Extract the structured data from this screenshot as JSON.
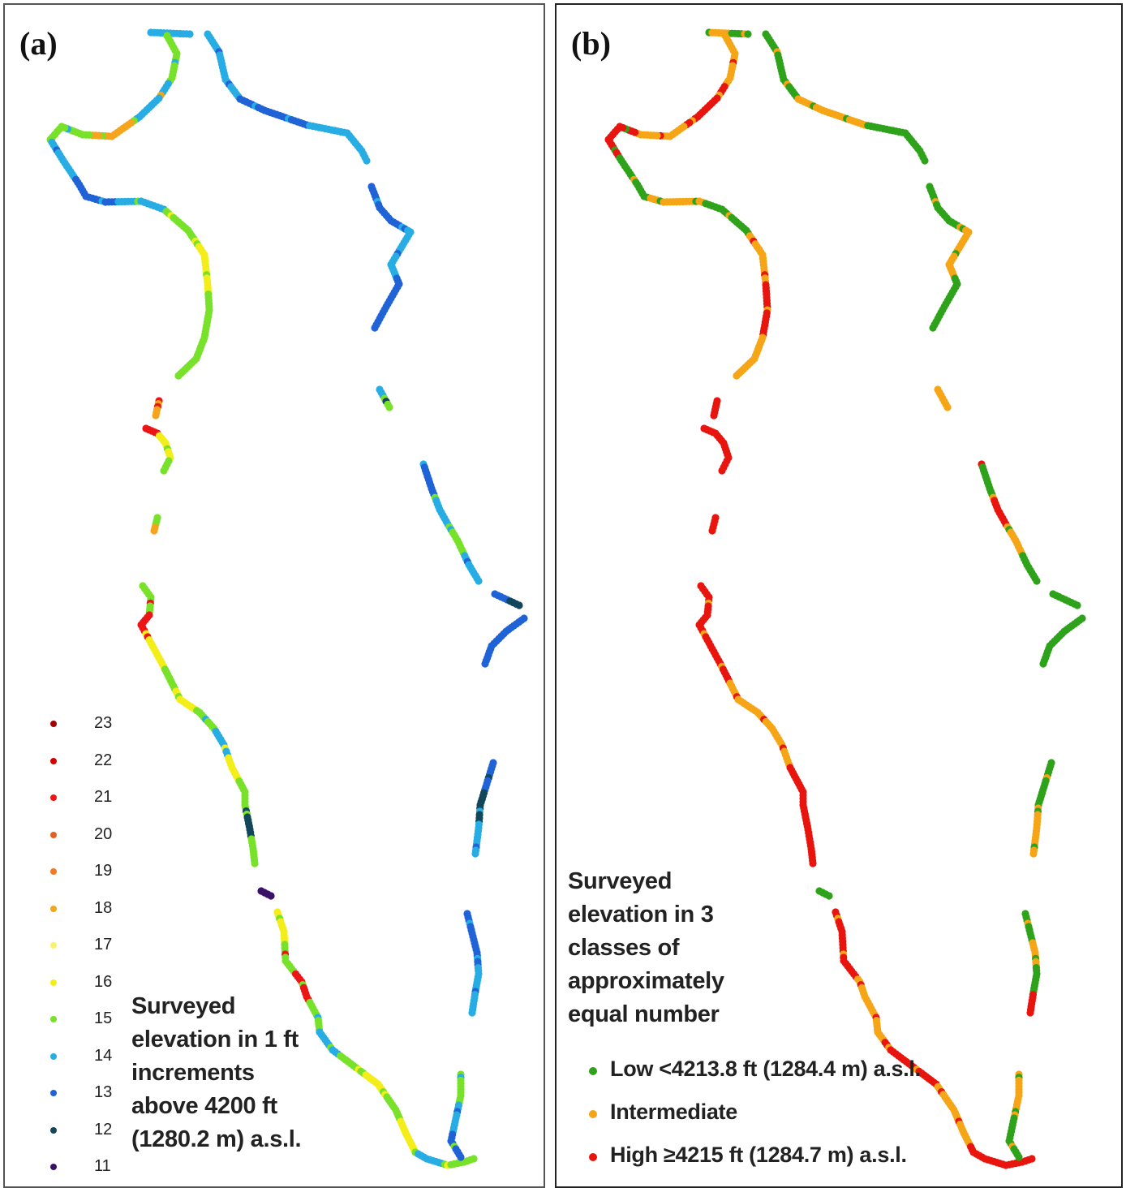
{
  "panel_a": {
    "label": "(a)",
    "title_lines": [
      "Surveyed",
      "elevation in 1 ft",
      "increments",
      "above 4200 ft",
      "(1280.2 m) a.s.l."
    ],
    "legend": [
      {
        "label": "23",
        "color": "#a30000"
      },
      {
        "label": "22",
        "color": "#d40000"
      },
      {
        "label": "21",
        "color": "#ec1515"
      },
      {
        "label": "20",
        "color": "#e2601e"
      },
      {
        "label": "19",
        "color": "#f27920"
      },
      {
        "label": "18",
        "color": "#f6a41b"
      },
      {
        "label": "17",
        "color": "#f8f36a"
      },
      {
        "label": "16",
        "color": "#f3ee1a"
      },
      {
        "label": "15",
        "color": "#78e12a"
      },
      {
        "label": "14",
        "color": "#27ade4"
      },
      {
        "label": "13",
        "color": "#1f63d6"
      },
      {
        "label": "12",
        "color": "#12475b"
      },
      {
        "label": "11",
        "color": "#3b1067"
      }
    ]
  },
  "panel_b": {
    "label": "(b)",
    "title_lines": [
      "Surveyed",
      "elevation in 3",
      "classes of",
      "approximately",
      "equal number"
    ],
    "legend": [
      {
        "label": "Low <4213.8 ft (1284.4 m) a.s.l.",
        "color": "#2ea21a"
      },
      {
        "label": "Intermediate",
        "color": "#f5a516"
      },
      {
        "label": "High ≥4215 ft (1284.7 m) a.s.l.",
        "color": "#e8150f"
      }
    ]
  },
  "track_colors": {
    "a": {
      "cyan": "#27ade4",
      "blue": "#1f63d6",
      "green": "#78e12a",
      "yellow": "#f3ee1a",
      "orange": "#f6a41b",
      "red": "#ec1515",
      "navy": "#12475b",
      "purple": "#3b1067"
    },
    "b": {
      "low": "#2ea21a",
      "mid": "#f5a516",
      "high": "#e8150f"
    }
  }
}
